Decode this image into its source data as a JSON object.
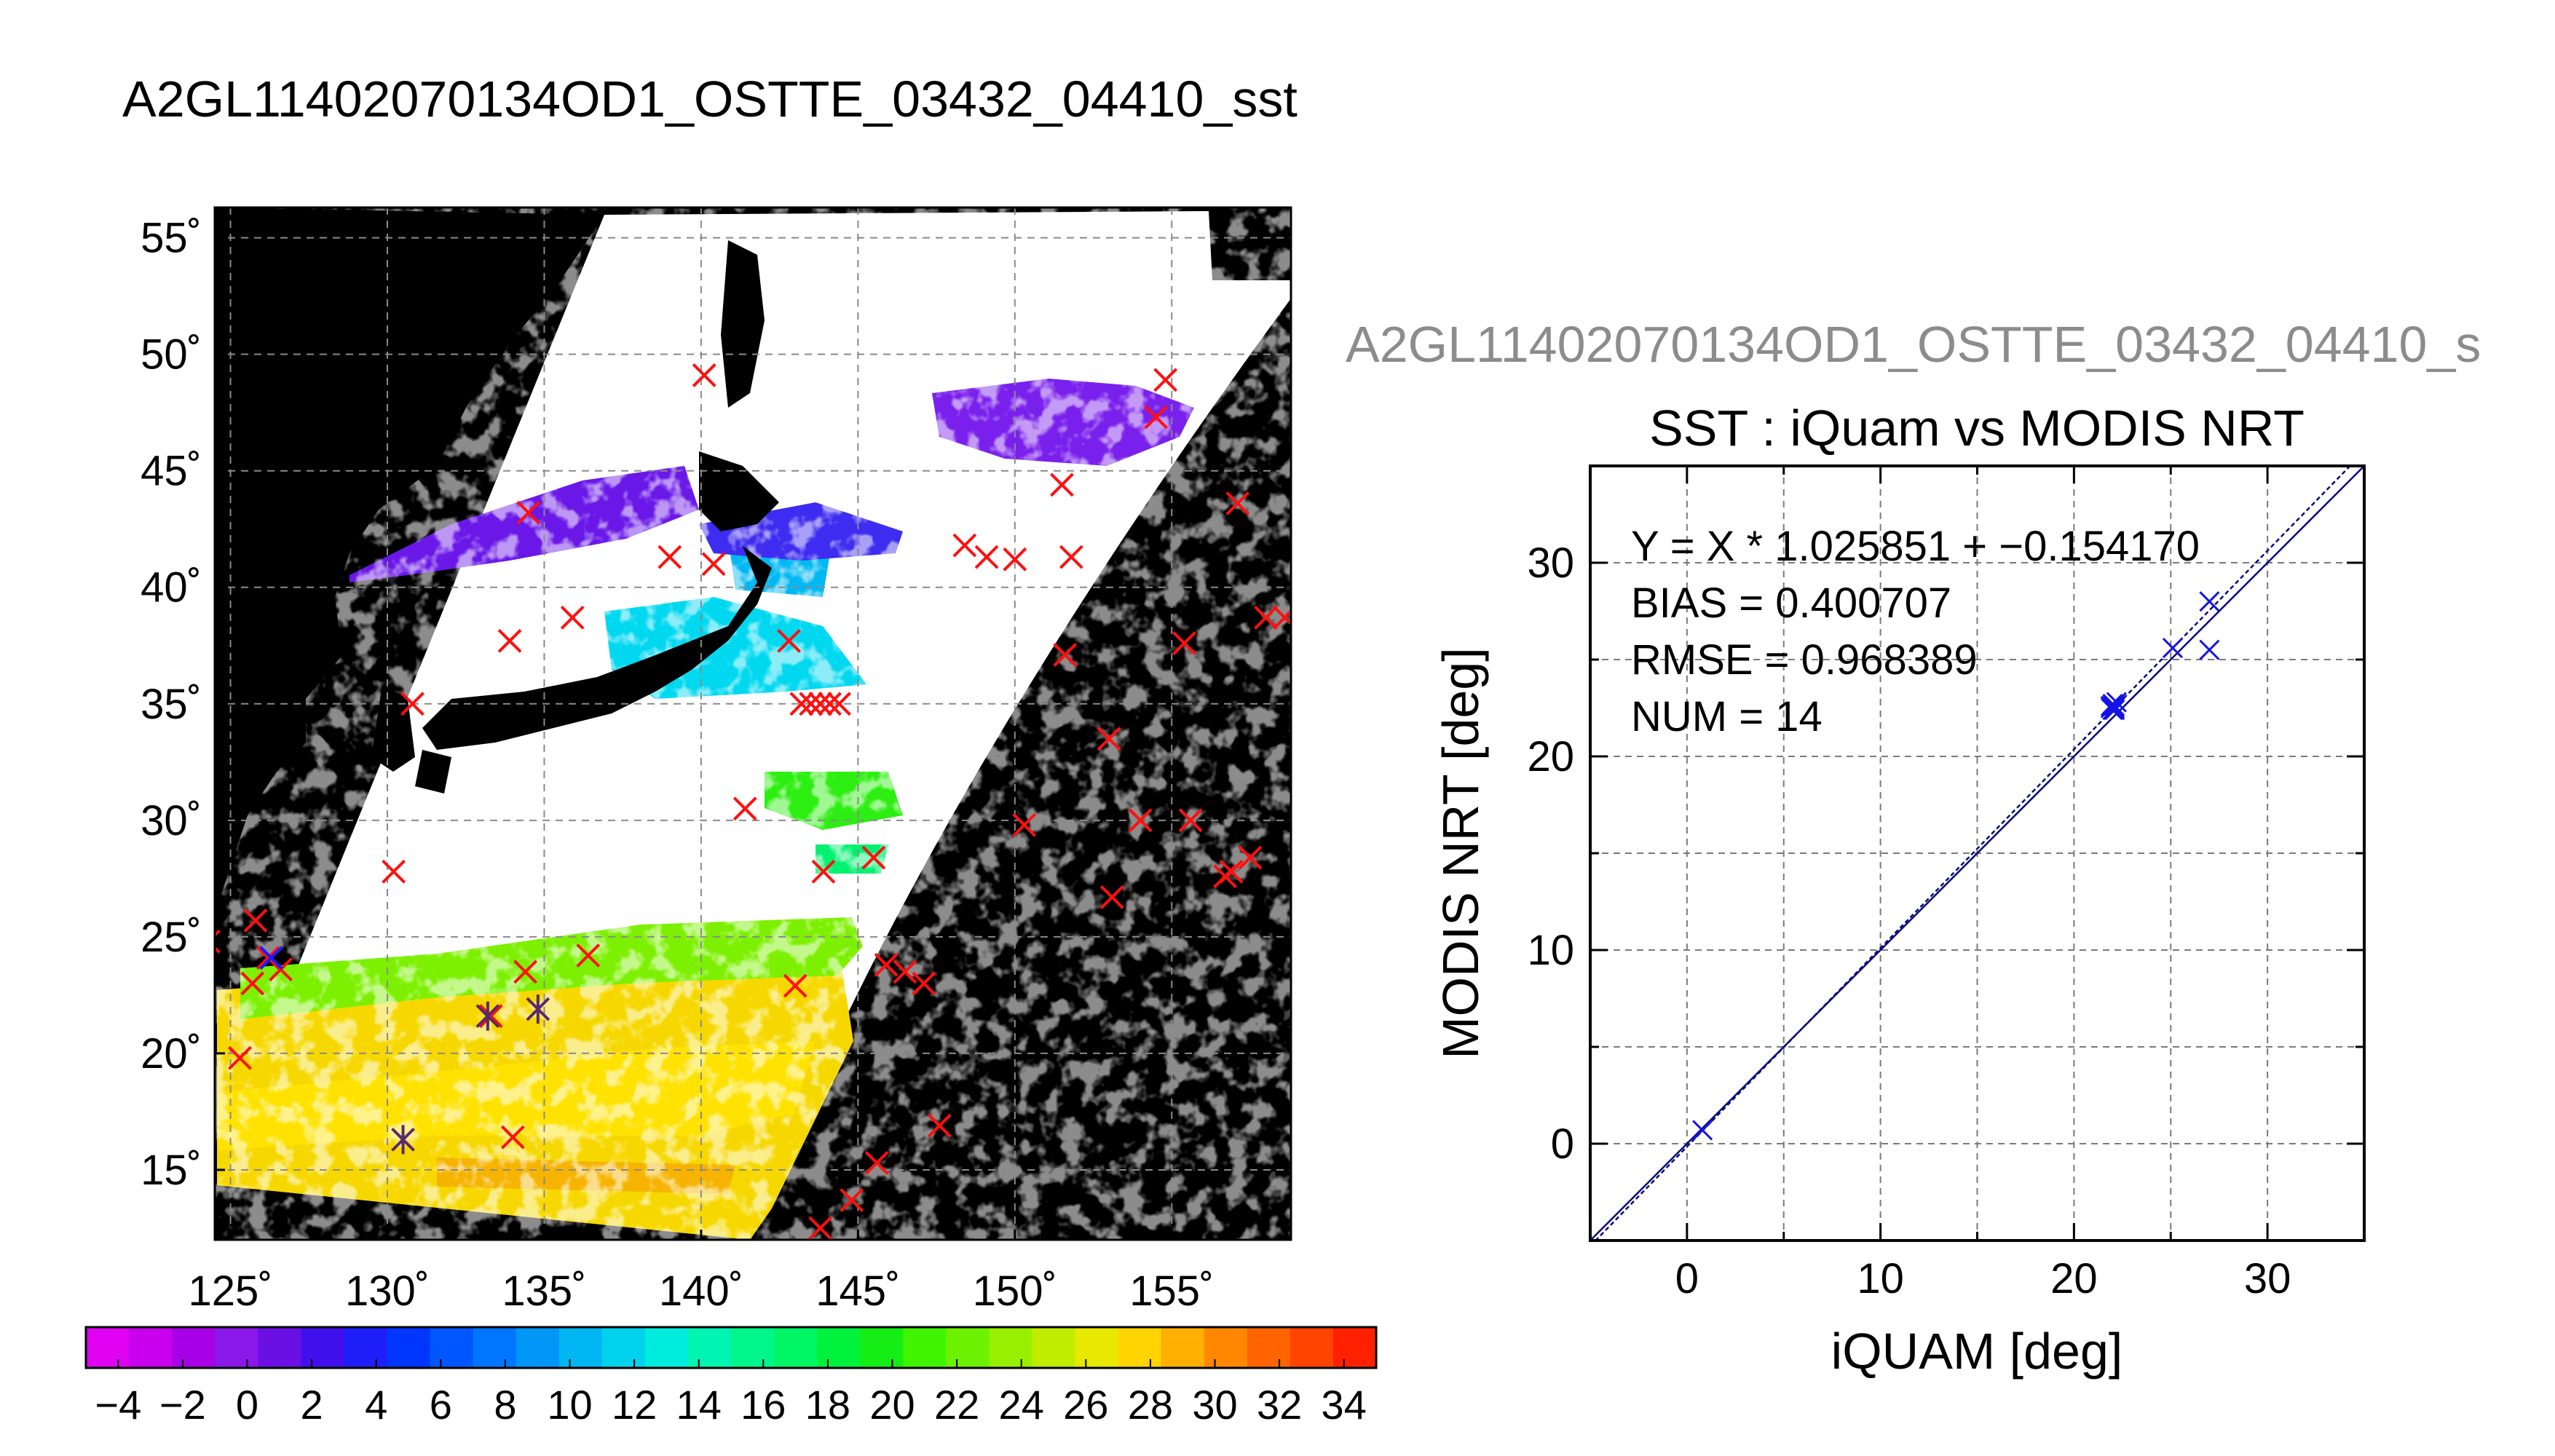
{
  "map_panel": {
    "title": "A2GL11402070134OD1_OSTTE_03432_04410_sst",
    "lat_ticks": [
      55,
      50,
      45,
      40,
      35,
      30,
      25,
      20,
      15
    ],
    "lat_labels": [
      "55˚",
      "50˚",
      "45˚",
      "40˚",
      "35˚",
      "30˚",
      "25˚",
      "20˚",
      "15˚"
    ],
    "lon_ticks": [
      125,
      130,
      135,
      140,
      145,
      150,
      155
    ],
    "lon_labels": [
      "125˚",
      "130˚",
      "135˚",
      "140˚",
      "145˚",
      "150˚",
      "155˚"
    ],
    "lon_range": [
      124.5,
      158.8
    ],
    "lat_range": [
      12.0,
      56.3
    ],
    "red_crosses": [
      [
        124.3,
        24.8
      ],
      [
        125.8,
        25.7
      ],
      [
        126.2,
        24.1
      ],
      [
        125.7,
        23.0
      ],
      [
        126.6,
        23.6
      ],
      [
        125.3,
        19.8
      ],
      [
        130.2,
        27.8
      ],
      [
        130.8,
        35.0
      ],
      [
        133.9,
        37.7
      ],
      [
        134.5,
        43.2
      ],
      [
        135.9,
        38.7
      ],
      [
        136.4,
        24.2
      ],
      [
        134.4,
        23.5
      ],
      [
        133.3,
        21.6
      ],
      [
        134.0,
        16.4
      ],
      [
        139.0,
        41.3
      ],
      [
        140.4,
        41.0
      ],
      [
        140.1,
        49.1
      ],
      [
        141.4,
        30.5
      ],
      [
        142.8,
        37.7
      ],
      [
        143.0,
        22.9
      ],
      [
        143.2,
        35.0
      ],
      [
        143.5,
        35.0
      ],
      [
        143.8,
        35.0
      ],
      [
        144.1,
        35.0
      ],
      [
        144.4,
        35.0
      ],
      [
        143.9,
        27.8
      ],
      [
        145.5,
        28.4
      ],
      [
        143.8,
        12.5
      ],
      [
        144.8,
        13.7
      ],
      [
        145.6,
        15.3
      ],
      [
        145.9,
        23.8
      ],
      [
        146.5,
        23.5
      ],
      [
        147.1,
        23.0
      ],
      [
        147.6,
        16.9
      ],
      [
        148.4,
        41.8
      ],
      [
        149.1,
        41.3
      ],
      [
        150.0,
        41.2
      ],
      [
        150.3,
        29.8
      ],
      [
        151.5,
        44.4
      ],
      [
        151.6,
        37.1
      ],
      [
        151.8,
        41.3
      ],
      [
        153.0,
        33.5
      ],
      [
        153.1,
        26.7
      ],
      [
        154.0,
        30.0
      ],
      [
        154.5,
        47.3
      ],
      [
        154.8,
        48.9
      ],
      [
        155.4,
        37.6
      ],
      [
        155.6,
        30.0
      ],
      [
        156.7,
        27.6
      ],
      [
        156.9,
        27.8
      ],
      [
        157.1,
        43.6
      ],
      [
        157.5,
        28.4
      ],
      [
        158.0,
        38.7
      ],
      [
        158.6,
        38.7
      ]
    ],
    "blue_crosses": [
      [
        126.3,
        24.1
      ]
    ],
    "dark_asterisks": [
      [
        130.5,
        16.3
      ],
      [
        133.2,
        21.6
      ],
      [
        134.8,
        21.9
      ]
    ],
    "colorbar": {
      "min": -5,
      "max": 35,
      "tick_values": [
        -4,
        -2,
        0,
        2,
        4,
        6,
        8,
        10,
        12,
        14,
        16,
        18,
        20,
        22,
        24,
        26,
        28,
        30,
        32,
        34
      ],
      "tick_labels": [
        "−4",
        "−2",
        "0",
        "2",
        "4",
        "6",
        "8",
        "10",
        "12",
        "14",
        "16",
        "18",
        "20",
        "22",
        "24",
        "26",
        "28",
        "30",
        "32",
        "34"
      ],
      "colors": [
        "#e000f2",
        "#c800ee",
        "#a800e6",
        "#8a18e8",
        "#6a10e4",
        "#4010ec",
        "#1e1ef8",
        "#0036ff",
        "#0056ff",
        "#0076ff",
        "#0096f6",
        "#00b6f2",
        "#00d2ee",
        "#00ecdc",
        "#00f4b2",
        "#00f68a",
        "#00f664",
        "#00f23c",
        "#14ee14",
        "#40f400",
        "#6cf200",
        "#98f000",
        "#c0ec00",
        "#e8e800",
        "#ffd400",
        "#ffb000",
        "#ff8800",
        "#ff6400",
        "#ff4400",
        "#ff2000"
      ]
    }
  },
  "scatter_panel": {
    "overlay_title": "A2GL11402070134OD1_OSTTE_03432_04410_s",
    "title": "SST : iQuam vs MODIS NRT",
    "stats": [
      "Y = X * 1.025851 + −0.154170",
      "BIAS = 0.400707",
      "RMSE = 0.968389",
      "NUM = 14"
    ],
    "x_ticks": [
      0,
      10,
      20,
      30
    ],
    "y_ticks": [
      0,
      10,
      20,
      30
    ]
  },
  "chart_data": [
    {
      "type": "scatter",
      "title": "SST : iQuam vs MODIS NRT",
      "xlabel": "iQUAM [deg]",
      "ylabel": "MODIS NRT [deg]",
      "xlim": [
        -5,
        35
      ],
      "ylim": [
        -5,
        35
      ],
      "grid": true,
      "series": [
        {
          "x": [
            0.8,
            22.0,
            22.1,
            21.9,
            22.0,
            22.2,
            21.9,
            22.1,
            22.0,
            22.0,
            25.1,
            27.0,
            27.0,
            22.1
          ],
          "y": [
            0.7,
            22.7,
            22.6,
            22.5,
            22.4,
            22.8,
            22.6,
            22.5,
            22.7,
            22.6,
            25.6,
            28.0,
            25.5,
            22.4
          ]
        }
      ],
      "lines": [
        {
          "slope": 1.025851,
          "intercept": -0.15417
        },
        {
          "slope": 1.0,
          "intercept": 0.0
        }
      ]
    }
  ]
}
